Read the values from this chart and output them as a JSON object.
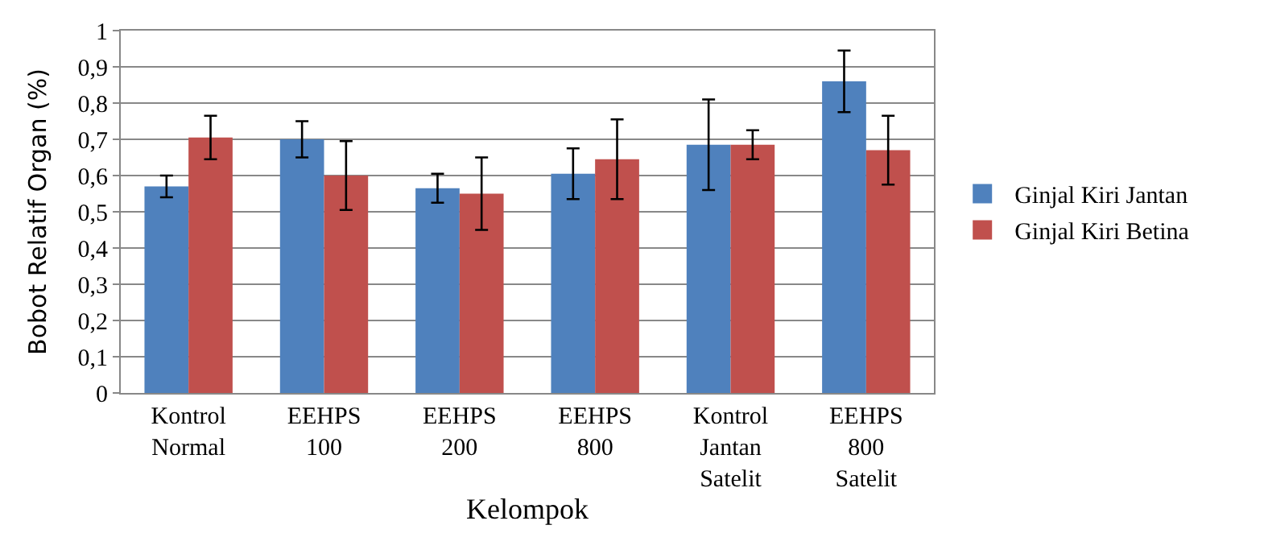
{
  "chart_data": {
    "type": "bar",
    "xlabel": "Kelompok",
    "ylabel": "Bobot Relatif Organ (%)",
    "categories": [
      "Kontrol\nNormal",
      "EEHPS\n100",
      "EEHPS\n200",
      "EEHPS\n800",
      "Kontrol\nJantan\nSatelit",
      "EEHPS\n800\nSatelit"
    ],
    "series": [
      {
        "name": "Ginjal Kiri Jantan",
        "color": "#4f81bd",
        "values": [
          0.57,
          0.7,
          0.565,
          0.605,
          0.685,
          0.86
        ],
        "errors": [
          0.03,
          0.05,
          0.04,
          0.07,
          0.125,
          0.085
        ]
      },
      {
        "name": "Ginjal Kiri Betina",
        "color": "#c0504d",
        "values": [
          0.705,
          0.6,
          0.55,
          0.645,
          0.685,
          0.67
        ],
        "errors": [
          0.06,
          0.095,
          0.1,
          0.11,
          0.04,
          0.095
        ]
      }
    ],
    "ylim": [
      0,
      1
    ],
    "yticks": [
      0,
      {
        "value": 0.1,
        "label": "0,1"
      },
      {
        "value": 0.2,
        "label": "0,2"
      },
      {
        "value": 0.3,
        "label": "0,3"
      },
      {
        "value": 0.4,
        "label": "0,4"
      },
      {
        "value": 0.5,
        "label": "0,5"
      },
      {
        "value": 0.6,
        "label": "0,6"
      },
      {
        "value": 0.7,
        "label": "0,7"
      },
      {
        "value": 0.8,
        "label": "0,8"
      },
      {
        "value": 0.9,
        "label": "0,9"
      },
      1
    ],
    "grid": "y",
    "legend": "right"
  }
}
